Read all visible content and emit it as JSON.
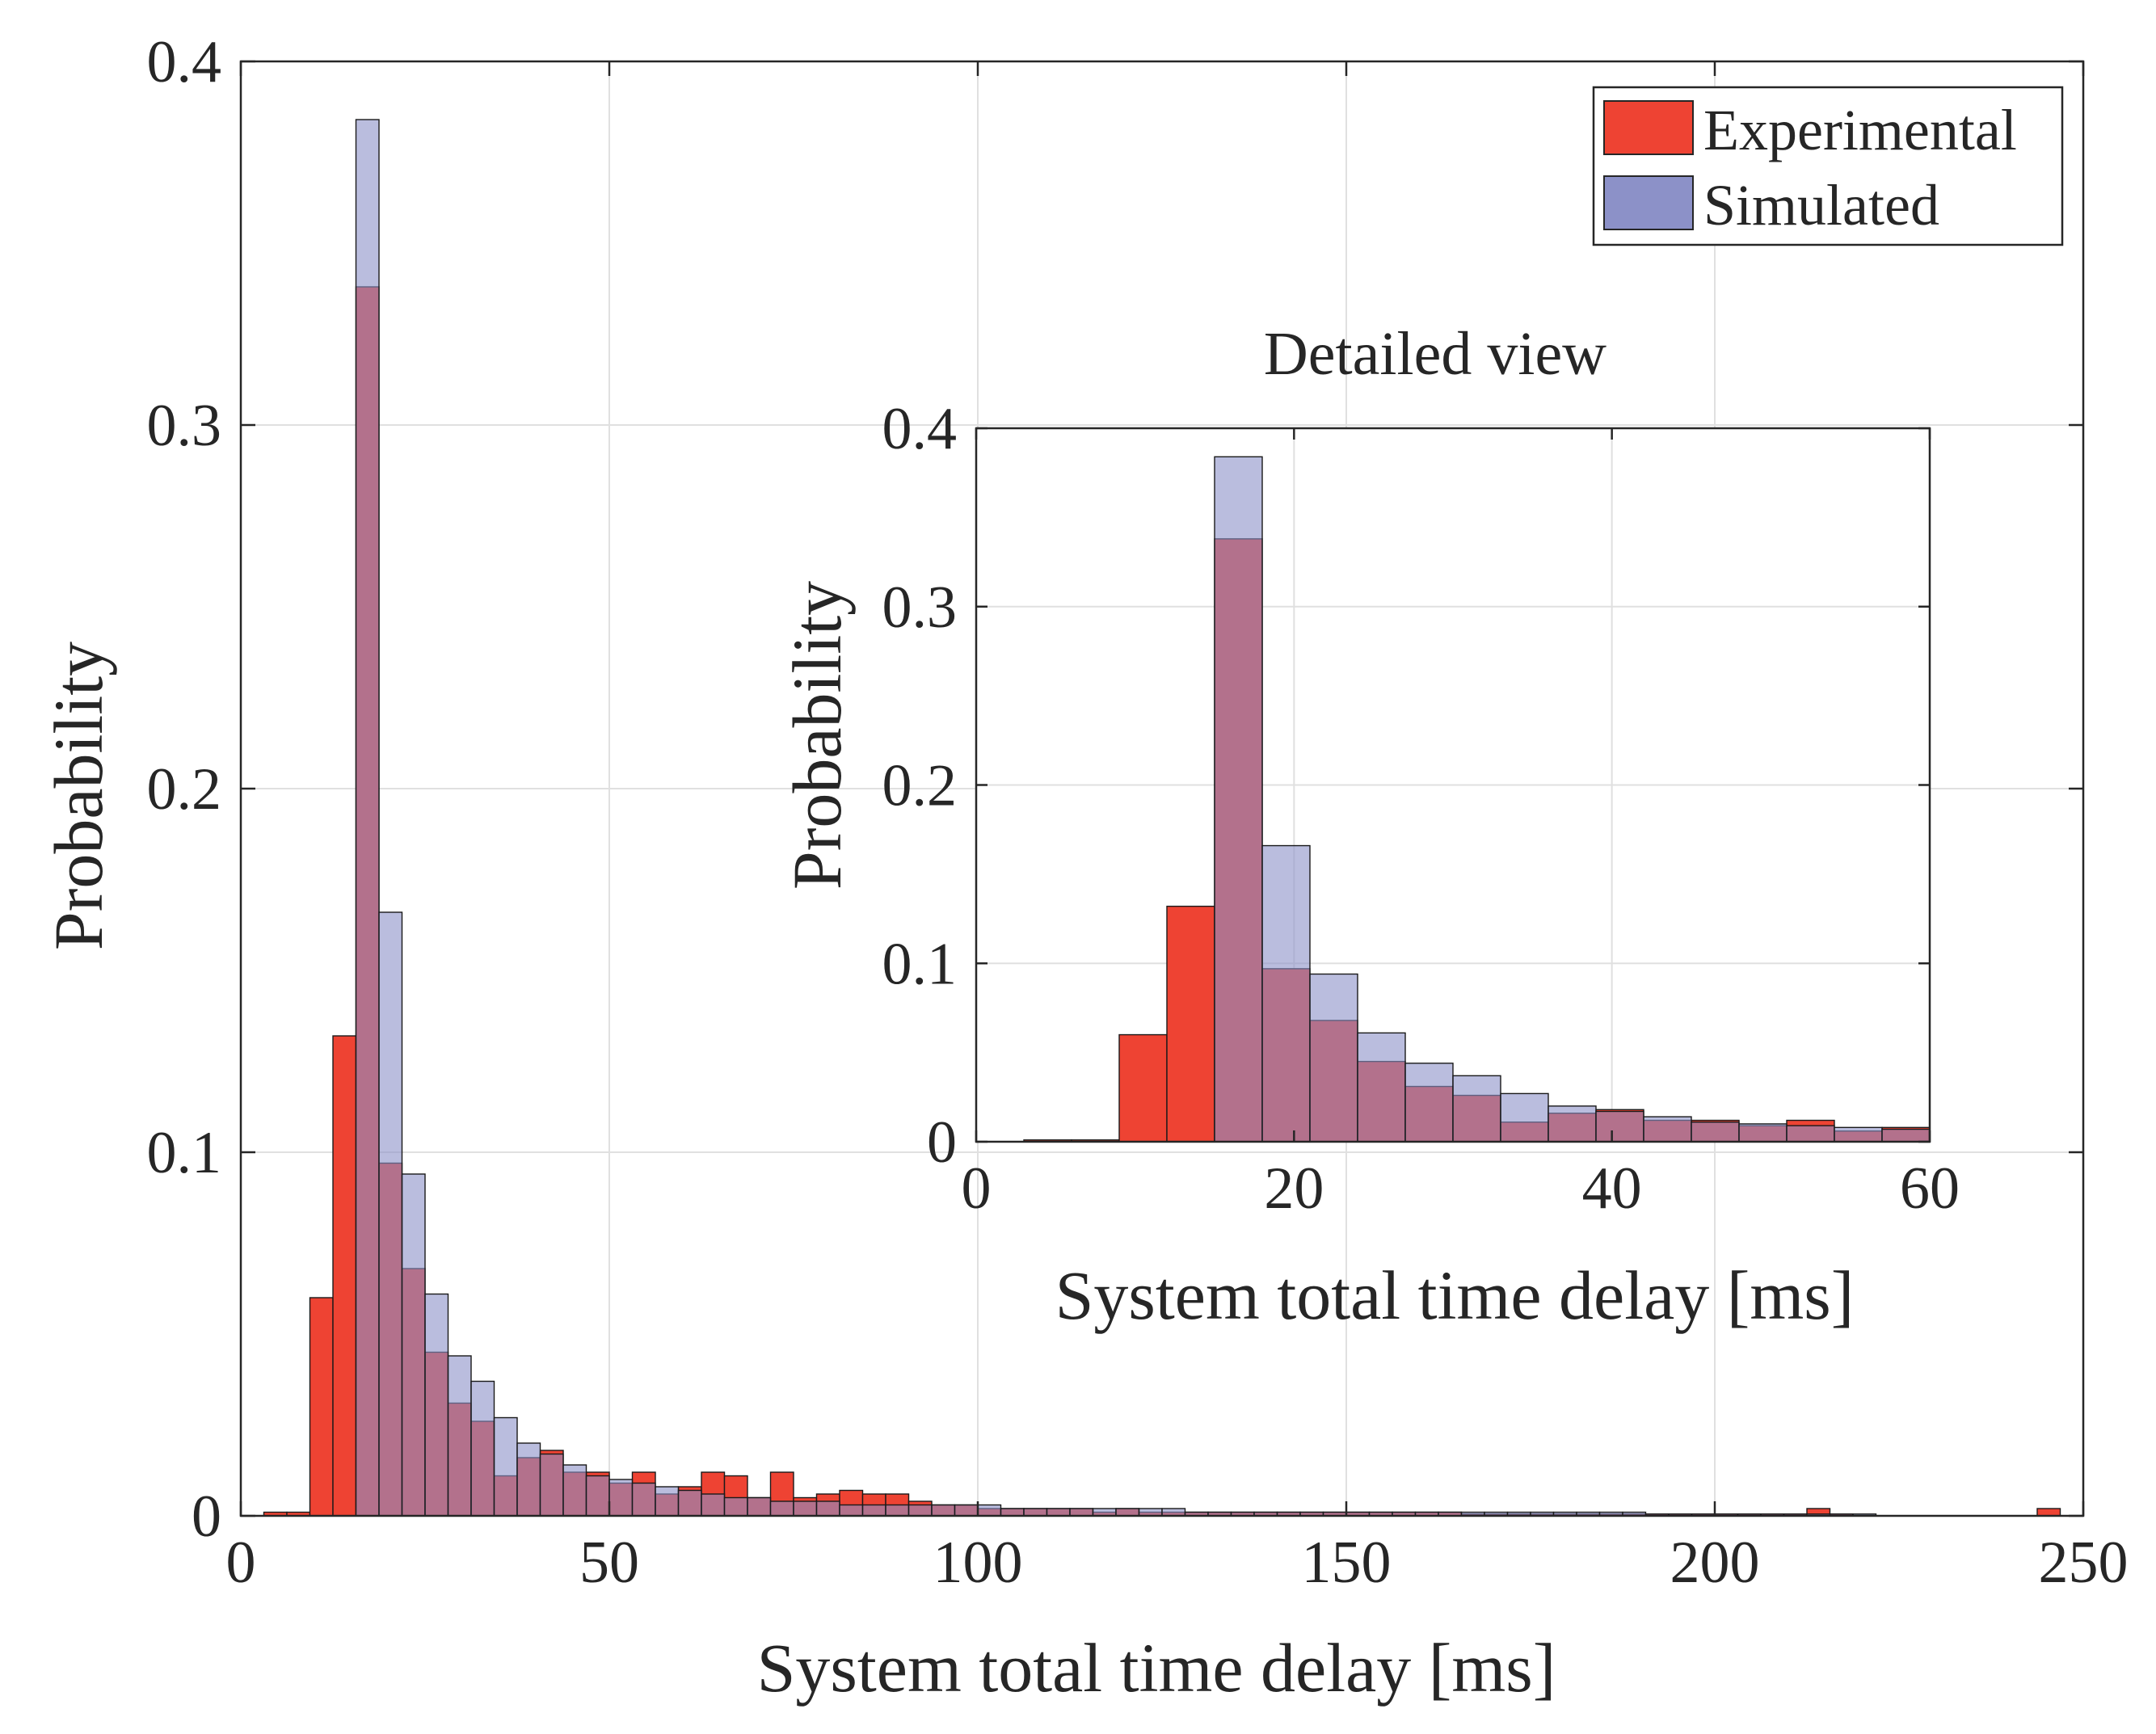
{
  "chart_data": [
    {
      "id": "main",
      "type": "bar",
      "subtype": "overlaid-histogram",
      "title": "",
      "xlabel": "System total time delay [ms]",
      "ylabel": "Probability",
      "xlim": [
        0,
        250
      ],
      "ylim": [
        0,
        0.4
      ],
      "xticks": [
        0,
        50,
        100,
        150,
        200,
        250
      ],
      "xtick_labels": [
        "0",
        "50",
        "100",
        "150",
        "200",
        "250"
      ],
      "yticks": [
        0,
        0.1,
        0.2,
        0.3,
        0.4
      ],
      "ytick_labels": [
        "0",
        "0.1",
        "0.2",
        "0.3",
        "0.4"
      ],
      "grid": true,
      "bin_width": 3.125,
      "bin_start": 3.125,
      "series": [
        {
          "name": "Experimental",
          "color": "#ee3f2f",
          "values": [
            0.001,
            0.001,
            0.06,
            0.132,
            0.338,
            0.097,
            0.068,
            0.045,
            0.031,
            0.026,
            0.011,
            0.016,
            0.018,
            0.012,
            0.012,
            0.009,
            0.012,
            0.006,
            0.008,
            0.012,
            0.011,
            0.005,
            0.012,
            0.005,
            0.006,
            0.007,
            0.006,
            0.006,
            0.004,
            0.003,
            0.003,
            0.002,
            0.002,
            0.002,
            0.002,
            0.002,
            0.001,
            0.002,
            0.001,
            0.001,
            0.001,
            0.001,
            0.001,
            0.001,
            0.001,
            0.001,
            0.001,
            0.001,
            0.001,
            0.001,
            0.001,
            0.001,
            0.0005,
            0.0005,
            0.0005,
            0.0005,
            0.0005,
            0.0005,
            0.0005,
            0.0005,
            0.0005,
            0.0005,
            0.0005,
            0.0005,
            0.0005,
            0.0005,
            0.0005,
            0.002,
            0.0005,
            0,
            0,
            0,
            0,
            0,
            0,
            0,
            0,
            0.002
          ]
        },
        {
          "name": "Simulated",
          "color": "#8c91c8",
          "values": [
            0,
            0,
            0,
            0,
            0.384,
            0.166,
            0.094,
            0.061,
            0.044,
            0.037,
            0.027,
            0.02,
            0.017,
            0.014,
            0.011,
            0.01,
            0.009,
            0.008,
            0.007,
            0.006,
            0.005,
            0.005,
            0.004,
            0.004,
            0.004,
            0.003,
            0.003,
            0.003,
            0.003,
            0.003,
            0.003,
            0.003,
            0.002,
            0.002,
            0.002,
            0.002,
            0.002,
            0.002,
            0.002,
            0.002,
            0.001,
            0.001,
            0.001,
            0.001,
            0.001,
            0.001,
            0.001,
            0.001,
            0.001,
            0.001,
            0.001,
            0.001,
            0.001,
            0.001,
            0.001,
            0.001,
            0.001,
            0.001,
            0.001,
            0.001,
            0.0005,
            0.0005,
            0.0005,
            0.0005,
            0.0005,
            0.0005,
            0.0005,
            0.0005,
            0.0005,
            0.0005,
            0,
            0,
            0,
            0,
            0,
            0,
            0,
            0
          ]
        }
      ],
      "legend": {
        "position": "top-right",
        "entries": [
          "Experimental",
          "Simulated"
        ]
      }
    },
    {
      "id": "inset",
      "type": "bar",
      "subtype": "overlaid-histogram",
      "title": "Detailed view",
      "xlabel": "System total time delay [ms]",
      "ylabel": "Probability",
      "xlim": [
        0,
        60
      ],
      "ylim": [
        0,
        0.4
      ],
      "xticks": [
        0,
        20,
        40,
        60
      ],
      "xtick_labels": [
        "0",
        "20",
        "40",
        "60"
      ],
      "yticks": [
        0,
        0.1,
        0.2,
        0.3,
        0.4
      ],
      "ytick_labels": [
        "0",
        "0.1",
        "0.2",
        "0.3",
        "0.4"
      ],
      "grid": true,
      "bin_width": 3,
      "bin_start": 3,
      "series": [
        {
          "name": "Experimental",
          "color": "#ee3f2f",
          "values": [
            0.001,
            0.001,
            0.06,
            0.132,
            0.338,
            0.097,
            0.068,
            0.045,
            0.031,
            0.026,
            0.011,
            0.016,
            0.018,
            0.012,
            0.012,
            0.009,
            0.012,
            0.006,
            0.008
          ]
        },
        {
          "name": "Simulated",
          "color": "#8c91c8",
          "values": [
            0,
            0,
            0,
            0,
            0.384,
            0.166,
            0.094,
            0.061,
            0.044,
            0.037,
            0.027,
            0.02,
            0.017,
            0.014,
            0.011,
            0.01,
            0.009,
            0.008,
            0.007
          ]
        }
      ]
    }
  ]
}
